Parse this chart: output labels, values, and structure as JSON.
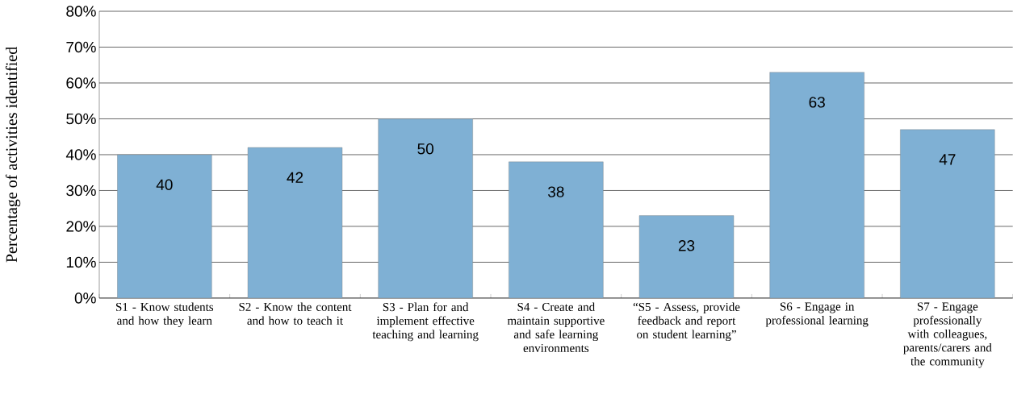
{
  "chart_data": {
    "type": "bar",
    "ylabel": "Percentage of activities identified",
    "categories": [
      "S1 - Know students and how they learn",
      "S2 - Know the content and how to teach it",
      "S3 - Plan for and implement effective teaching and learning",
      "S4 - Create and maintain supportive and safe learning environments",
      "“S5 - Assess, provide feedback and report on student learning”",
      "S6 - Engage in professional learning",
      "S7 - Engage professionally with colleagues, parents/carers and the community"
    ],
    "values": [
      40,
      42,
      50,
      38,
      23,
      63,
      47
    ],
    "color": "#7fb0d4",
    "ylim": [
      0,
      80
    ],
    "yticks": [
      {
        "value": 0,
        "label": "0%"
      },
      {
        "value": 10,
        "label": "10%"
      },
      {
        "value": 20,
        "label": "20%"
      },
      {
        "value": 30,
        "label": "30%"
      },
      {
        "value": 40,
        "label": "40%"
      },
      {
        "value": 50,
        "label": "50%"
      },
      {
        "value": 60,
        "label": "60%"
      },
      {
        "value": 70,
        "label": "70%"
      },
      {
        "value": 80,
        "label": "80%"
      }
    ],
    "grid": "y",
    "data_labels": true
  }
}
